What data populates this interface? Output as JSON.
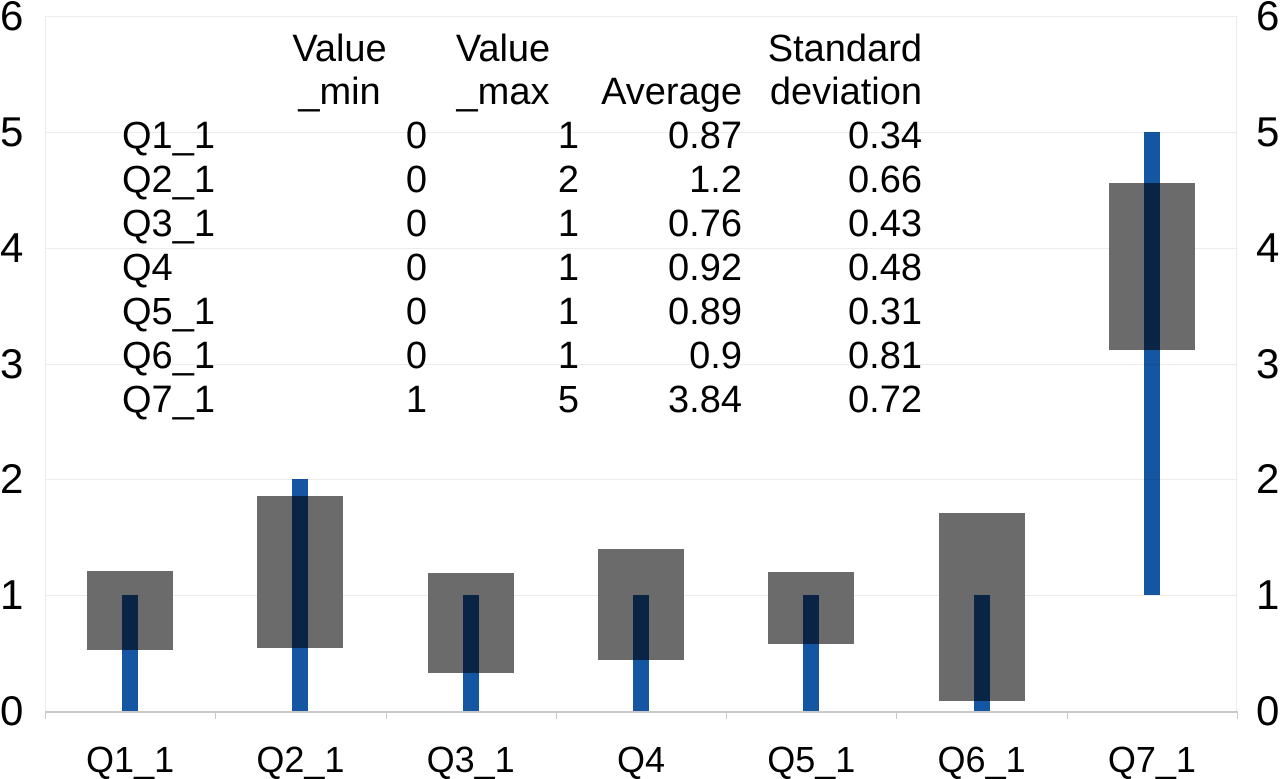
{
  "chart_data": {
    "type": "bar",
    "subtype": "min-max range bars with average±stddev boxes (stock-style)",
    "title": "",
    "xlabel": "",
    "ylabel": "",
    "categories": [
      "Q1_1",
      "Q2_1",
      "Q3_1",
      "Q4",
      "Q5_1",
      "Q6_1",
      "Q7_1"
    ],
    "series": [
      {
        "name": "Value_min",
        "values": [
          0,
          0,
          0,
          0,
          0,
          0,
          1
        ]
      },
      {
        "name": "Value_max",
        "values": [
          1,
          2,
          1,
          1,
          1,
          1,
          5
        ]
      },
      {
        "name": "Average",
        "values": [
          0.87,
          1.2,
          0.76,
          0.92,
          0.89,
          0.9,
          3.84
        ]
      },
      {
        "name": "Standard deviation",
        "values": [
          0.34,
          0.66,
          0.43,
          0.48,
          0.31,
          0.81,
          0.72
        ]
      }
    ],
    "ylim": [
      0,
      6
    ],
    "yticks": [
      0,
      1,
      2,
      3,
      4,
      5,
      6
    ],
    "grid": true,
    "y_axis_sides": [
      "left",
      "right"
    ],
    "legend": "none",
    "notes": "blue bar spans Value_min..Value_max; gray box spans Average±Standard deviation; overlap renders dark navy"
  },
  "table": {
    "columns": [
      {
        "key": "label",
        "label": ""
      },
      {
        "key": "min",
        "label": "Value\n_min"
      },
      {
        "key": "max",
        "label": "Value\n_max"
      },
      {
        "key": "avg",
        "label": "Average"
      },
      {
        "key": "std",
        "label": "Standard\ndeviation"
      }
    ],
    "rows": [
      {
        "label": "Q1_1",
        "min": "0",
        "max": "1",
        "avg": "0.87",
        "std": "0.34"
      },
      {
        "label": "Q2_1",
        "min": "0",
        "max": "2",
        "avg": "1.2",
        "std": "0.66"
      },
      {
        "label": "Q3_1",
        "min": "0",
        "max": "1",
        "avg": "0.76",
        "std": "0.43"
      },
      {
        "label": "Q4",
        "min": "0",
        "max": "1",
        "avg": "0.92",
        "std": "0.48"
      },
      {
        "label": "Q5_1",
        "min": "0",
        "max": "1",
        "avg": "0.89",
        "std": "0.31"
      },
      {
        "label": "Q6_1",
        "min": "0",
        "max": "1",
        "avg": "0.9",
        "std": "0.81"
      },
      {
        "label": "Q7_1",
        "min": "1",
        "max": "5",
        "avg": "3.84",
        "std": "0.72"
      }
    ]
  },
  "colors": {
    "range_bar_blue": "#1456a2",
    "stddev_box_gray": "#6b6b6b",
    "gridline": "#ececec",
    "axis_line": "#c9c9c9",
    "text": "#000000",
    "background": "#ffffff"
  }
}
